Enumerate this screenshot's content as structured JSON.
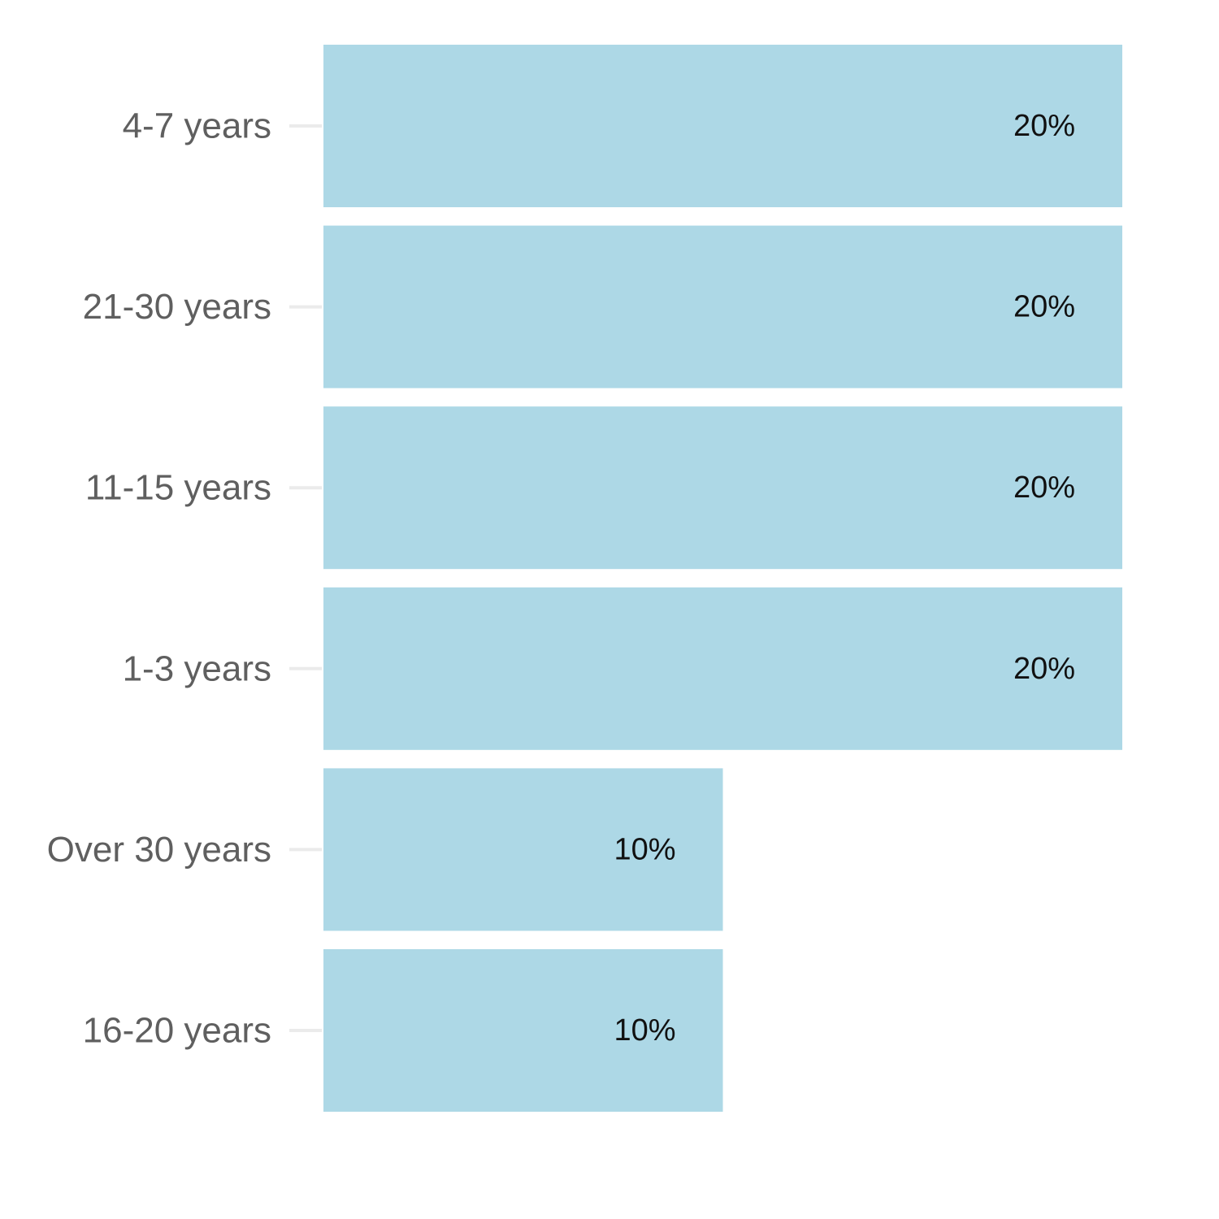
{
  "chart_data": {
    "type": "bar",
    "orientation": "horizontal",
    "categories": [
      "4-7 years",
      "21-30 years",
      "11-15 years",
      "1-3 years",
      "Over 30 years",
      "16-20 years"
    ],
    "values": [
      20,
      20,
      20,
      20,
      10,
      10
    ],
    "data_labels": [
      "20%",
      "20%",
      "20%",
      "20%",
      "10%",
      "10%"
    ],
    "unit": "%",
    "xlim": [
      0,
      20
    ],
    "title": "",
    "xlabel": "",
    "ylabel": "",
    "grid": false,
    "legend": "none",
    "bar_color": "#add8e6",
    "tick_color": "#ebebeb"
  }
}
